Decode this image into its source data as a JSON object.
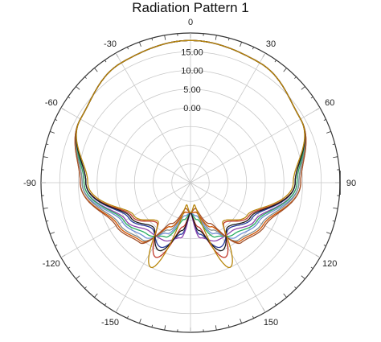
{
  "chart_data": {
    "type": "polar-line",
    "title": "Radiation Pattern 1",
    "angle_tick_labels": [
      "0",
      "30",
      "60",
      "90",
      "120",
      "150",
      "-150",
      "-120",
      "-90",
      "-60",
      "-30"
    ],
    "angle_ticks_deg": [
      0,
      30,
      60,
      90,
      120,
      150,
      -150,
      -120,
      -90,
      -60,
      -30
    ],
    "radial_tick_labels": [
      "15.00",
      "10.00",
      "5.00",
      "0.00"
    ],
    "radial_ticks": [
      15,
      10,
      5,
      0
    ],
    "rlim": [
      -20,
      20
    ],
    "grid": true,
    "series_description": "Family of overlapping pattern curves, peak about 18 at 0 deg, nulls near +/-180 deg",
    "series": [
      {
        "color": "#c0392b",
        "angles": [
          0,
          30,
          60,
          90,
          120,
          140,
          155,
          170,
          180
        ],
        "values": [
          18,
          17,
          14,
          8,
          -2,
          -6,
          2,
          -8,
          -12
        ]
      },
      {
        "color": "#2c3e9e",
        "angles": [
          0,
          30,
          60,
          90,
          120,
          140,
          155,
          170,
          180
        ],
        "values": [
          18,
          17,
          14,
          8,
          -1,
          -4,
          -1,
          -6,
          -12
        ]
      },
      {
        "color": "#8e44ad",
        "angles": [
          0,
          30,
          60,
          90,
          120,
          140,
          155,
          170,
          180
        ],
        "values": [
          18,
          17,
          14,
          8.5,
          0,
          -3,
          -3,
          -5,
          -12
        ]
      },
      {
        "color": "#27ae60",
        "angles": [
          0,
          30,
          60,
          90,
          120,
          140,
          155,
          170,
          180
        ],
        "values": [
          18,
          17,
          14,
          8.5,
          0.5,
          -2,
          -4,
          -10,
          -12
        ]
      },
      {
        "color": "#6d8fd6",
        "angles": [
          0,
          30,
          60,
          90,
          120,
          140,
          155,
          170,
          180
        ],
        "values": [
          18,
          17,
          14,
          9,
          1,
          -1,
          -5,
          -11,
          -12
        ]
      },
      {
        "color": "#7f8c8d",
        "angles": [
          0,
          30,
          60,
          90,
          120,
          140,
          155,
          170,
          180
        ],
        "values": [
          18,
          17,
          14,
          9,
          2,
          0,
          -6,
          -12,
          -12
        ]
      },
      {
        "color": "#d35400",
        "angles": [
          0,
          30,
          60,
          90,
          120,
          140,
          155,
          170,
          180
        ],
        "values": [
          18,
          17,
          14,
          9.5,
          2.5,
          0.5,
          -7,
          -12,
          -12
        ]
      },
      {
        "color": "#a0522d",
        "angles": [
          0,
          30,
          60,
          90,
          120,
          140,
          155,
          170,
          180
        ],
        "values": [
          18,
          17,
          14,
          9.5,
          3,
          1,
          -8,
          -13,
          -12
        ]
      },
      {
        "color": "#1a1a1a",
        "angles": [
          0,
          30,
          60,
          90,
          120,
          140,
          155,
          170,
          180
        ],
        "values": [
          18,
          17,
          14,
          8,
          -1.5,
          -4.5,
          0,
          -7,
          -12
        ]
      },
      {
        "color": "#b8860b",
        "angles": [
          0,
          30,
          60,
          90,
          120,
          140,
          155,
          170,
          180
        ],
        "values": [
          18,
          17,
          14,
          7.5,
          -2.5,
          -6.5,
          5,
          -14,
          -12
        ]
      }
    ]
  }
}
